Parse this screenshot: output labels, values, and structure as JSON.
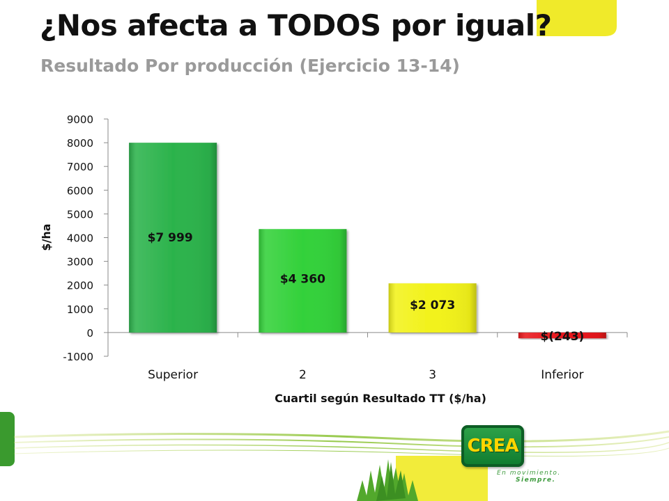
{
  "slide": {
    "title": "¿Nos afecta a TODOS por igual?",
    "subtitle": "Resultado Por producción (Ejercicio 13-14)"
  },
  "chart_data": {
    "type": "bar",
    "categories": [
      "Superior",
      "2",
      "3",
      "Inferior"
    ],
    "values": [
      7999,
      4360,
      2073,
      -243
    ],
    "data_labels": [
      "$7 999",
      "$4 360",
      "$2 073",
      "$(243)"
    ],
    "bar_colors": [
      "#2cb34c",
      "#33d13a",
      "#f2f21a",
      "#e8161b"
    ],
    "xlabel": "Cuartil según Resultado TT ($/ha)",
    "ylabel": "$/ha",
    "ylim": [
      -1000,
      9000
    ],
    "yticks": [
      -1000,
      0,
      1000,
      2000,
      3000,
      4000,
      5000,
      6000,
      7000,
      8000,
      9000
    ],
    "grid": false,
    "legend": "none"
  },
  "brand": {
    "logo_text": "CREA",
    "tagline_line1": "En movimiento.",
    "tagline_line2": "Siempre.",
    "accent_green": "#3a9a2e",
    "accent_yellow": "#f0ea2a"
  }
}
